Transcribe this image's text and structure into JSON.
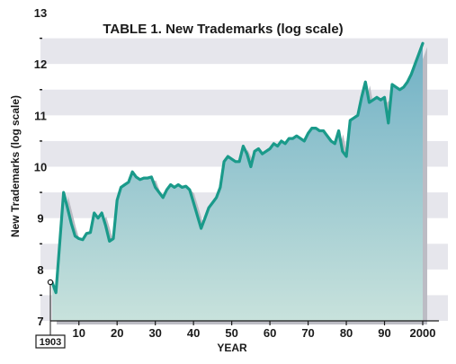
{
  "chart_data": {
    "type": "area",
    "title": "TABLE 1. New Trademarks (log scale)",
    "xlabel": "YEAR",
    "ylabel": "New Trademarks (log scale)",
    "y_scale": "natural log",
    "ylim": [
      7,
      13
    ],
    "xlim": [
      1903,
      2000
    ],
    "y_ticks": [
      7,
      8,
      9,
      10,
      11,
      12,
      13
    ],
    "x_ticks": [
      {
        "year": 1910,
        "label": "10"
      },
      {
        "year": 1920,
        "label": "20"
      },
      {
        "year": 1930,
        "label": "30"
      },
      {
        "year": 1940,
        "label": "40"
      },
      {
        "year": 1950,
        "label": "50"
      },
      {
        "year": 1960,
        "label": "60"
      },
      {
        "year": 1970,
        "label": "70"
      },
      {
        "year": 1980,
        "label": "80"
      },
      {
        "year": 1990,
        "label": "90"
      },
      {
        "year": 2000,
        "label": "2000"
      }
    ],
    "start_label": "1903",
    "grid": "horizontal bands",
    "colors": {
      "line": "#1a9a8a",
      "fill_top": "#6fb0c5",
      "fill_bottom": "#c8e2dc",
      "band": "#e6e6ec",
      "shadow": "#bcbcc4"
    },
    "series": [
      {
        "x": [
          1903,
          1904,
          1906,
          1907,
          1908,
          1909,
          1910,
          1911,
          1912,
          1913,
          1914,
          1915,
          1916,
          1917,
          1918,
          1919,
          1920,
          1921,
          1922,
          1923,
          1924,
          1925,
          1926,
          1927,
          1928,
          1929,
          1930,
          1931,
          1932,
          1933,
          1934,
          1935,
          1936,
          1937,
          1938,
          1939,
          1940,
          1941,
          1942,
          1943,
          1944,
          1945,
          1946,
          1947,
          1948,
          1949,
          1950,
          1951,
          1952,
          1953,
          1954,
          1955,
          1956,
          1957,
          1958,
          1959,
          1960,
          1961,
          1962,
          1963,
          1964,
          1965,
          1966,
          1967,
          1968,
          1969,
          1970,
          1971,
          1972,
          1973,
          1974,
          1975,
          1976,
          1977,
          1978,
          1979,
          1980,
          1981,
          1982,
          1983,
          1984,
          1985,
          1986,
          1987,
          1988,
          1989,
          1990,
          1991,
          1992,
          1993,
          1994,
          1995,
          1996,
          1997,
          1998,
          1999,
          2000
        ],
        "y": [
          7.75,
          7.55,
          9.5,
          9.2,
          8.9,
          8.65,
          8.6,
          8.58,
          8.7,
          8.72,
          9.1,
          9.0,
          9.1,
          8.85,
          8.55,
          8.6,
          9.35,
          9.6,
          9.65,
          9.7,
          9.9,
          9.8,
          9.75,
          9.78,
          9.78,
          9.8,
          9.6,
          9.5,
          9.4,
          9.55,
          9.65,
          9.6,
          9.65,
          9.6,
          9.62,
          9.55,
          9.3,
          9.05,
          8.8,
          9.0,
          9.2,
          9.3,
          9.4,
          9.6,
          10.1,
          10.2,
          10.15,
          10.1,
          10.1,
          10.4,
          10.25,
          10.0,
          10.3,
          10.35,
          10.25,
          10.3,
          10.35,
          10.45,
          10.4,
          10.5,
          10.45,
          10.55,
          10.55,
          10.6,
          10.55,
          10.5,
          10.65,
          10.75,
          10.75,
          10.7,
          10.7,
          10.6,
          10.5,
          10.45,
          10.7,
          10.3,
          10.2,
          10.9,
          10.95,
          11.0,
          11.35,
          11.65,
          11.25,
          11.3,
          11.35,
          11.3,
          11.35,
          10.85,
          11.6,
          11.55,
          11.5,
          11.55,
          11.65,
          11.8,
          12.0,
          12.2,
          12.4
        ]
      }
    ]
  }
}
